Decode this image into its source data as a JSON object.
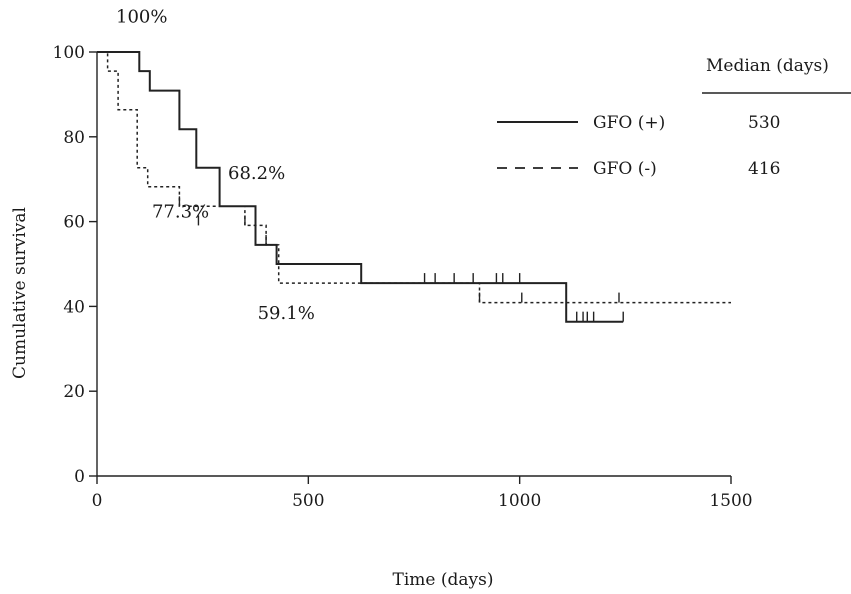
{
  "chart_data": {
    "type": "line",
    "step": true,
    "xlabel": "Time (days)",
    "ylabel": "Cumulative survival",
    "xlim": [
      0,
      1500
    ],
    "ylim": [
      0,
      100
    ],
    "xticks": [
      0,
      500,
      1000,
      1500
    ],
    "yticks": [
      0,
      20,
      40,
      60,
      80,
      100
    ],
    "grid": false,
    "legend": {
      "placement": "top-right",
      "header": "Median (days)"
    },
    "series": [
      {
        "name": "GFO (+)",
        "style": "solid",
        "median_days": "530",
        "x": [
          0,
          100,
          100,
          125,
          125,
          195,
          195,
          235,
          235,
          290,
          290,
          375,
          375,
          425,
          425,
          625,
          625,
          1110,
          1110,
          1245
        ],
        "y": [
          100,
          100,
          95.5,
          95.5,
          90.9,
          90.9,
          81.8,
          81.8,
          72.7,
          72.7,
          63.6,
          63.6,
          54.5,
          54.5,
          50,
          50,
          45.5,
          45.5,
          36.4,
          36.4
        ],
        "censored_x": [
          775,
          800,
          845,
          890,
          945,
          960,
          1000,
          1135,
          1150,
          1160,
          1175,
          1245
        ],
        "censored_y": [
          45.5,
          45.5,
          45.5,
          45.5,
          45.5,
          45.5,
          45.5,
          36.4,
          36.4,
          36.4,
          36.4,
          36.4
        ]
      },
      {
        "name": "GFO (-)",
        "style": "dashed",
        "median_days": "416",
        "x": [
          0,
          25,
          25,
          50,
          50,
          95,
          95,
          120,
          120,
          195,
          195,
          350,
          350,
          400,
          400,
          430,
          430,
          905,
          905,
          1500
        ],
        "y": [
          100,
          100,
          95.5,
          95.5,
          86.4,
          86.4,
          72.7,
          72.7,
          68.2,
          68.2,
          63.6,
          63.6,
          59.1,
          59.1,
          54.5,
          54.5,
          45.5,
          45.5,
          40.9,
          40.9
        ],
        "censored_x": [
          195,
          240,
          350,
          400,
          905,
          1005,
          1235
        ],
        "censored_y": [
          63.6,
          59.1,
          59.1,
          54.5,
          40.9,
          40.9,
          40.9
        ]
      }
    ],
    "annotations": [
      {
        "text": "100%",
        "x": 45,
        "y": 107
      },
      {
        "text": "68.2%",
        "x": 310,
        "y": 70
      },
      {
        "text": "77.3%",
        "x": 130,
        "y": 61
      },
      {
        "text": "59.1%",
        "x": 380,
        "y": 37
      }
    ]
  }
}
